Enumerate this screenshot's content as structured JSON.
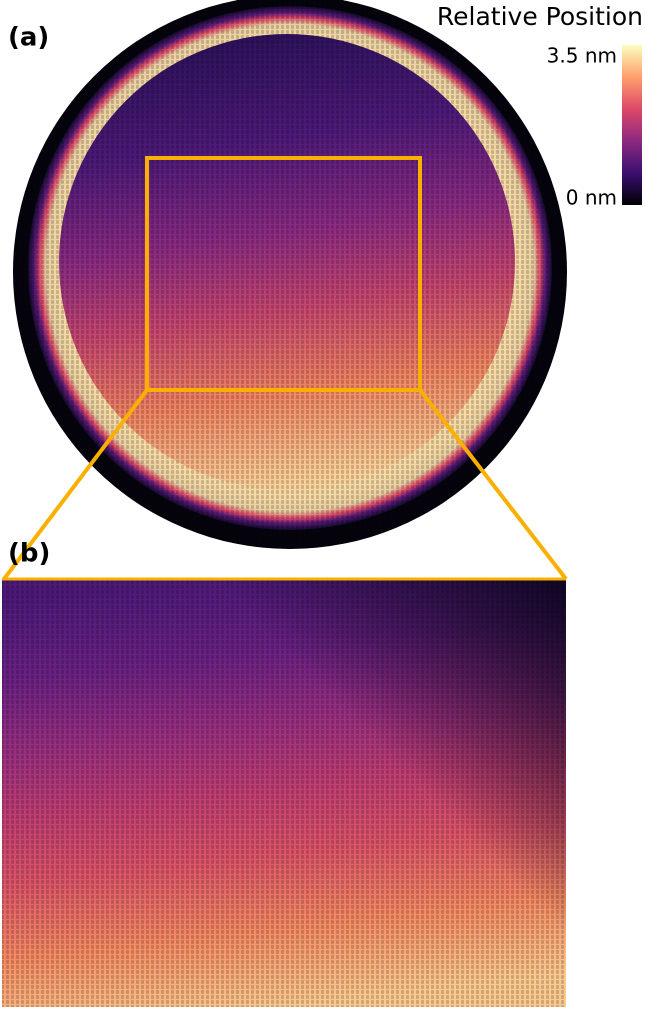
{
  "panels": [
    {
      "label": "(a)"
    },
    {
      "label": "(b)"
    }
  ],
  "colorbar": {
    "title": "Relative Position",
    "max_label": "3.5 nm",
    "min_label": "0 nm"
  }
}
